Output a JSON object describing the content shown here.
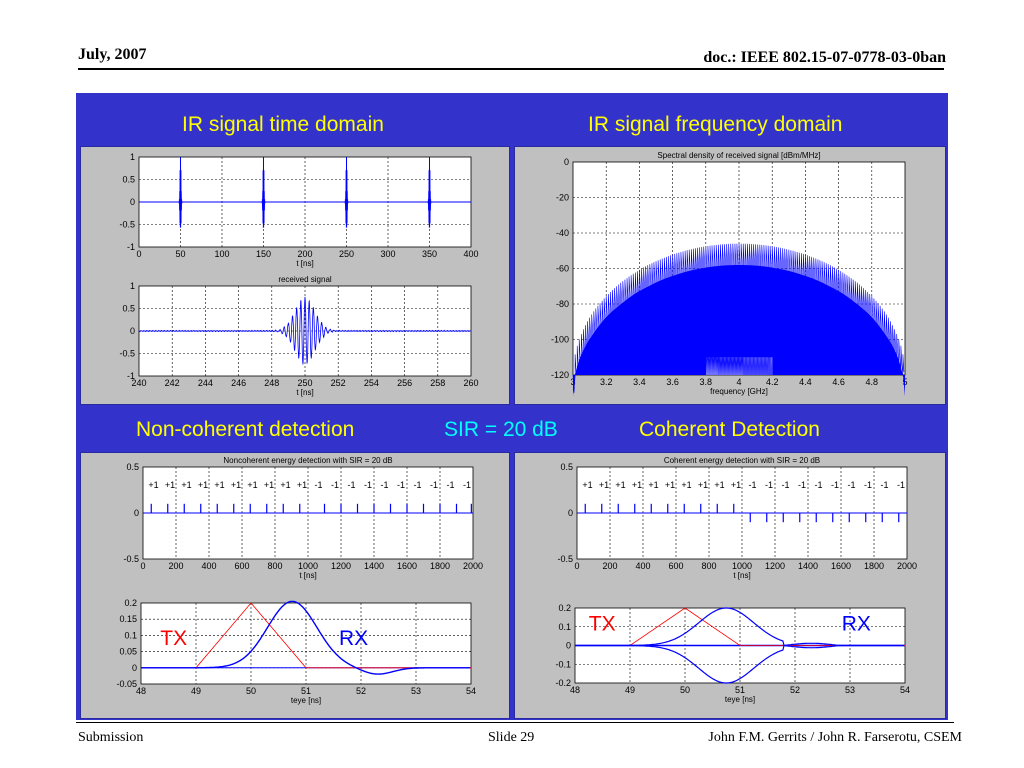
{
  "header": {
    "date": "July, 2007",
    "doc": "doc.: IEEE 802.15-07-0778-03-0ban"
  },
  "footer": {
    "left": "Submission",
    "middle": "Slide 29",
    "right": "John F.M. Gerrits / John R. Farserotu, CSEM"
  },
  "headings": {
    "time_domain": "IR signal time domain",
    "freq_domain": "IR signal frequency domain",
    "noncoherent": "Non-coherent detection",
    "sir": "SIR = 20 dB",
    "coherent": "Coherent Detection"
  },
  "colors": {
    "panel_bg": "#3333cc",
    "heading": "#ffff00",
    "sir": "#00ffff",
    "signal": "#0000ff",
    "tx": "#ff0000"
  },
  "chart_data": [
    {
      "id": "pulse-train",
      "type": "line",
      "title": "",
      "xlabel": "t [ns]",
      "ylabel": "",
      "xlim": [
        0,
        400
      ],
      "ylim": [
        -1,
        1
      ],
      "xticks": [
        0,
        50,
        100,
        150,
        200,
        250,
        300,
        350,
        400
      ],
      "yticks": [
        1,
        0.5,
        0,
        -0.5,
        -1
      ],
      "pulses_at": [
        50,
        150,
        250,
        350
      ],
      "pulse_amplitude": 1,
      "grid": true
    },
    {
      "id": "received-signal",
      "type": "line",
      "title": "received signal",
      "xlabel": "t [ns]",
      "ylabel": "",
      "xlim": [
        240,
        260
      ],
      "ylim": [
        -1,
        1
      ],
      "xticks": [
        240,
        242,
        244,
        246,
        248,
        250,
        252,
        254,
        256,
        258,
        260
      ],
      "yticks": [
        1,
        0.5,
        0,
        -0.5,
        -1
      ],
      "pulse_center": 250,
      "pulse_width": 0.6,
      "pulse_amplitude": 0.75,
      "grid": true
    },
    {
      "id": "spectral-density",
      "type": "area",
      "title": "Spectral density of received signal [dBm/MHz]",
      "xlabel": "frequency [GHz]",
      "ylabel": "",
      "xlim": [
        3,
        5
      ],
      "ylim": [
        -120,
        0
      ],
      "xticks": [
        3,
        3.2,
        3.4,
        3.6,
        3.8,
        4,
        4.2,
        4.4,
        4.6,
        4.8,
        5
      ],
      "yticks": [
        0,
        -20,
        -40,
        -60,
        -80,
        -100,
        -120
      ],
      "main_lobe": {
        "center": 4,
        "peak": -46,
        "edge_level": -120,
        "x_from": 3,
        "x_to": 5
      },
      "interferer": {
        "x_from": 3.8,
        "x_to": 4.2,
        "level": -100
      },
      "grid": true
    },
    {
      "id": "noncoherent-detection",
      "type": "bar",
      "title": "Noncoherent energy detection with SIR = 20 dB",
      "xlabel": "t [ns]",
      "ylabel": "",
      "xlim": [
        0,
        2000
      ],
      "ylim": [
        -0.5,
        0.5
      ],
      "xticks": [
        0,
        200,
        400,
        600,
        800,
        1000,
        1200,
        1400,
        1600,
        1800,
        2000
      ],
      "yticks": [
        0.5,
        0,
        -0.5
      ],
      "bits": [
        "+1",
        "+1",
        "+1",
        "+1",
        "+1",
        "+1",
        "+1",
        "+1",
        "+1",
        "+1",
        "-1",
        "-1",
        "-1",
        "-1",
        "-1",
        "-1",
        "-1",
        "-1",
        "-1",
        "-1"
      ],
      "first_position": 50,
      "spacing": 100,
      "offset_minus": 50,
      "pulse_height": 0.1,
      "grid": true
    },
    {
      "id": "noncoherent-eye",
      "type": "line",
      "title": "",
      "xlabel": "teye [ns]",
      "ylabel": "",
      "xlim": [
        48,
        54
      ],
      "ylim": [
        -0.05,
        0.2
      ],
      "xticks": [
        48,
        49,
        50,
        51,
        52,
        53,
        54
      ],
      "yticks": [
        0.2,
        0.15,
        0.1,
        0.05,
        0,
        -0.05
      ],
      "tx": {
        "label": "TX",
        "x": [
          48,
          49,
          50,
          51,
          54
        ],
        "y": [
          0,
          0,
          0.2,
          0,
          0
        ]
      },
      "rx": {
        "label": "RX",
        "center": 50.75,
        "peak": 0.205,
        "width": 0.45,
        "undershoot": -0.02
      },
      "grid": true
    },
    {
      "id": "coherent-detection",
      "type": "bar",
      "title": "Coherent energy detection with SIR = 20 dB",
      "xlabel": "t [ns]",
      "ylabel": "",
      "xlim": [
        0,
        2000
      ],
      "ylim": [
        -0.5,
        0.5
      ],
      "xticks": [
        0,
        200,
        400,
        600,
        800,
        1000,
        1200,
        1400,
        1600,
        1800,
        2000
      ],
      "yticks": [
        0.5,
        0,
        -0.5
      ],
      "bits": [
        "+1",
        "+1",
        "+1",
        "+1",
        "+1",
        "+1",
        "+1",
        "+1",
        "+1",
        "+1",
        "-1",
        "-1",
        "-1",
        "-1",
        "-1",
        "-1",
        "-1",
        "-1",
        "-1",
        "-1"
      ],
      "first_position": 50,
      "spacing": 100,
      "pulse_height": 0.1,
      "grid": true
    },
    {
      "id": "coherent-eye",
      "type": "line",
      "title": "",
      "xlabel": "teye [ns]",
      "ylabel": "",
      "xlim": [
        48,
        54
      ],
      "ylim": [
        -0.2,
        0.2
      ],
      "xticks": [
        48,
        49,
        50,
        51,
        52,
        53,
        54
      ],
      "yticks": [
        0.2,
        0.1,
        0,
        -0.1,
        -0.2
      ],
      "tx": {
        "label": "TX",
        "x": [
          48,
          49,
          50,
          51,
          54
        ],
        "y": [
          0,
          0,
          0.2,
          0,
          0
        ]
      },
      "rx": {
        "label": "RX",
        "center": 50.75,
        "peak": 0.2,
        "width": 0.5
      },
      "grid": true
    }
  ]
}
